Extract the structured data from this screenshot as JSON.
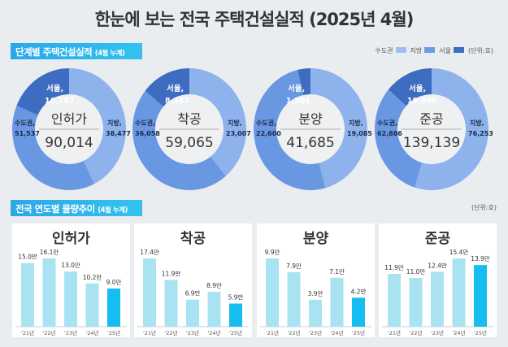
{
  "title": "한눈에 보는 전국 주택건설실적 (2025년 4월)",
  "section1": {
    "label": "단계별 주택건설실적",
    "note": "(4월 누계)"
  },
  "section2": {
    "label": "전국 연도별 물량추이",
    "note": "(4월 누계)",
    "unit": "(단위:호)"
  },
  "legend": {
    "items": [
      {
        "name": "수도권",
        "color": "#9dbdf0"
      },
      {
        "name": "지방",
        "color": "#6f9be3"
      },
      {
        "name": "서울",
        "color": "#3d6cc0"
      }
    ],
    "unit": "(단위:호)"
  },
  "chart_data": [
    {
      "type": "pie",
      "subtype": "donut",
      "categories": [
        "수도권",
        "지방",
        "서울"
      ],
      "charts": [
        {
          "name": "인허가",
          "total": "90,014",
          "capital": 51537,
          "local": 38477,
          "seoul": 16787,
          "labels": {
            "capital": "수도권,",
            "capital_v": "51,537",
            "local": "지방,",
            "local_v": "38,477",
            "seoul": "서울,",
            "seoul_v": "16,787"
          }
        },
        {
          "name": "착공",
          "total": "59,065",
          "capital": 36058,
          "local": 23007,
          "seoul": 8357,
          "labels": {
            "capital": "수도권,",
            "capital_v": "36,058",
            "local": "지방,",
            "local_v": "23,007",
            "seoul": "서울,",
            "seoul_v": "8,357"
          }
        },
        {
          "name": "분양",
          "total": "41,685",
          "capital": 22600,
          "local": 19085,
          "seoul": 1501,
          "labels": {
            "capital": "수도권,",
            "capital_v": "22,600",
            "local": "지방,",
            "local_v": "19,085",
            "seoul": "서울,",
            "seoul_v": "1,501"
          }
        },
        {
          "name": "준공",
          "total": "139,139",
          "capital": 62886,
          "local": 76253,
          "seoul": 19090,
          "labels": {
            "capital": "수도권,",
            "capital_v": "62,886",
            "local": "지방,",
            "local_v": "76,253",
            "seoul": "서울,",
            "seoul_v": "19,090"
          }
        }
      ]
    },
    {
      "type": "bar",
      "categories": [
        "'21년",
        "'22년",
        "'23년",
        "'24년",
        "'25년"
      ],
      "unit": "만",
      "series": [
        {
          "name": "인허가",
          "values": [
            15.0,
            16.1,
            13.0,
            10.2,
            9.0
          ]
        },
        {
          "name": "착공",
          "values": [
            17.4,
            11.9,
            6.9,
            8.9,
            5.9
          ]
        },
        {
          "name": "분양",
          "values": [
            9.9,
            7.9,
            3.9,
            7.1,
            4.2
          ]
        },
        {
          "name": "준공",
          "values": [
            11.9,
            11.0,
            12.4,
            15.4,
            13.9
          ]
        }
      ],
      "colors": {
        "past": "#a9e3f2",
        "current": "#16bdf0"
      }
    }
  ]
}
